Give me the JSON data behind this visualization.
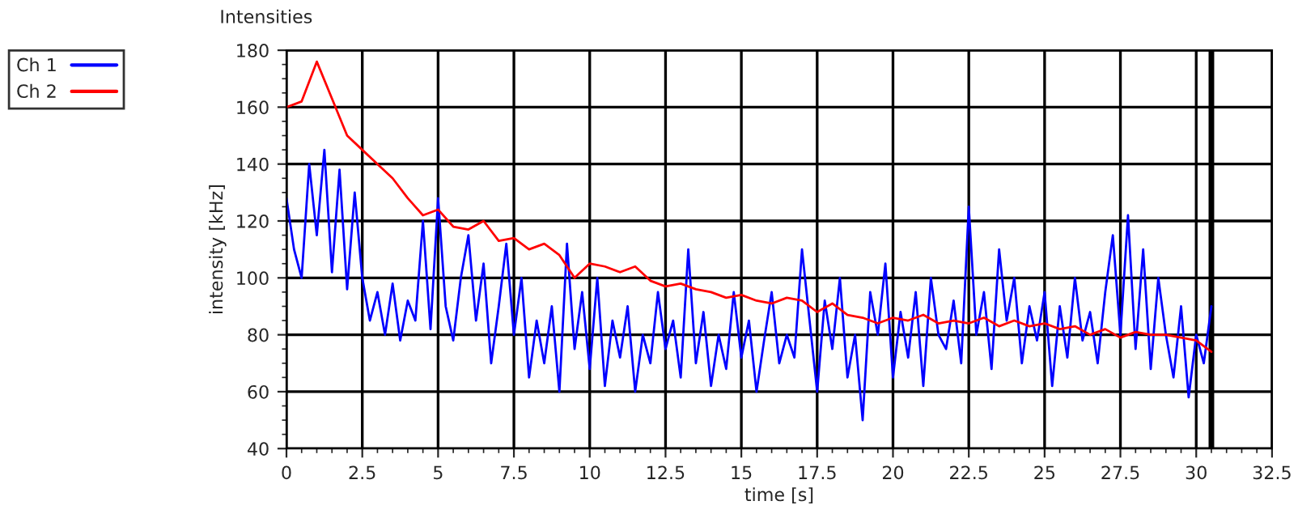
{
  "chart_data": {
    "type": "line",
    "title": "Intensities",
    "xlabel": "time [s]",
    "ylabel": "intensity [kHz]",
    "xlim": [
      0,
      32.5
    ],
    "xticks": [
      0,
      2.5,
      5,
      7.5,
      10,
      12.5,
      15,
      17.5,
      20,
      22.5,
      25,
      27.5,
      30,
      32.5
    ],
    "ylim": [
      40,
      180
    ],
    "yticks": [
      40,
      60,
      80,
      100,
      120,
      140,
      160,
      180
    ],
    "grid": true,
    "legend": "top left",
    "line_style": "solid",
    "ref_lines": [
      {
        "axis": "x",
        "value": 30.5,
        "color": "#000000"
      }
    ],
    "series": [
      {
        "name": "Ch 1",
        "color": "#0000ff",
        "x": [
          0,
          0.25,
          0.5,
          0.75,
          1,
          1.25,
          1.5,
          1.75,
          2,
          2.25,
          2.5,
          2.75,
          3,
          3.25,
          3.5,
          3.75,
          4,
          4.25,
          4.5,
          4.75,
          5,
          5.25,
          5.5,
          5.75,
          6,
          6.25,
          6.5,
          6.75,
          7,
          7.25,
          7.5,
          7.75,
          8,
          8.25,
          8.5,
          8.75,
          9,
          9.25,
          9.5,
          9.75,
          10,
          10.25,
          10.5,
          10.75,
          11,
          11.25,
          11.5,
          11.75,
          12,
          12.25,
          12.5,
          12.75,
          13,
          13.25,
          13.5,
          13.75,
          14,
          14.25,
          14.5,
          14.75,
          15,
          15.25,
          15.5,
          15.75,
          16,
          16.25,
          16.5,
          16.75,
          17,
          17.25,
          17.5,
          17.75,
          18,
          18.25,
          18.5,
          18.75,
          19,
          19.25,
          19.5,
          19.75,
          20,
          20.25,
          20.5,
          20.75,
          21,
          21.25,
          21.5,
          21.75,
          22,
          22.25,
          22.5,
          22.75,
          23,
          23.25,
          23.5,
          23.75,
          24,
          24.25,
          24.5,
          24.75,
          25,
          25.25,
          25.5,
          25.75,
          26,
          26.25,
          26.5,
          26.75,
          27,
          27.25,
          27.5,
          27.75,
          28,
          28.25,
          28.5,
          28.75,
          29,
          29.25,
          29.5,
          29.75,
          30,
          30.25,
          30.5
        ],
        "values": [
          128,
          110,
          100,
          140,
          115,
          145,
          102,
          138,
          96,
          130,
          100,
          85,
          95,
          80,
          98,
          78,
          92,
          85,
          120,
          82,
          128,
          90,
          78,
          100,
          115,
          85,
          105,
          70,
          90,
          112,
          80,
          100,
          65,
          85,
          70,
          90,
          60,
          112,
          75,
          95,
          68,
          100,
          62,
          85,
          72,
          90,
          60,
          80,
          70,
          95,
          75,
          85,
          65,
          110,
          70,
          88,
          62,
          80,
          68,
          95,
          72,
          85,
          60,
          78,
          95,
          70,
          80,
          72,
          110,
          85,
          60,
          92,
          75,
          100,
          65,
          80,
          50,
          95,
          80,
          105,
          65,
          88,
          72,
          95,
          62,
          100,
          80,
          75,
          92,
          70,
          125,
          80,
          95,
          68,
          110,
          85,
          100,
          70,
          90,
          78,
          95,
          62,
          90,
          72,
          100,
          78,
          88,
          70,
          95,
          115,
          80,
          122,
          75,
          110,
          68,
          100,
          80,
          65,
          90,
          58,
          80,
          70,
          90
        ]
      },
      {
        "name": "Ch 2",
        "color": "#ff0000",
        "x": [
          0,
          0.5,
          1,
          1.5,
          2,
          2.5,
          3,
          3.5,
          4,
          4.5,
          5,
          5.5,
          6,
          6.5,
          7,
          7.5,
          8,
          8.5,
          9,
          9.5,
          10,
          10.5,
          11,
          11.5,
          12,
          12.5,
          13,
          13.5,
          14,
          14.5,
          15,
          15.5,
          16,
          16.5,
          17,
          17.5,
          18,
          18.5,
          19,
          19.5,
          20,
          20.5,
          21,
          21.5,
          22,
          22.5,
          23,
          23.5,
          24,
          24.5,
          25,
          25.5,
          26,
          26.5,
          27,
          27.5,
          28,
          28.5,
          29,
          29.5,
          30,
          30.5
        ],
        "values": [
          160,
          162,
          176,
          163,
          150,
          145,
          140,
          135,
          128,
          122,
          124,
          118,
          117,
          120,
          113,
          114,
          110,
          112,
          108,
          100,
          105,
          104,
          102,
          104,
          99,
          97,
          98,
          96,
          95,
          93,
          94,
          92,
          91,
          93,
          92,
          88,
          91,
          87,
          86,
          84,
          86,
          85,
          87,
          84,
          85,
          84,
          86,
          83,
          85,
          83,
          84,
          82,
          83,
          80,
          82,
          79,
          81,
          80,
          80,
          79,
          78,
          74
        ]
      }
    ]
  }
}
